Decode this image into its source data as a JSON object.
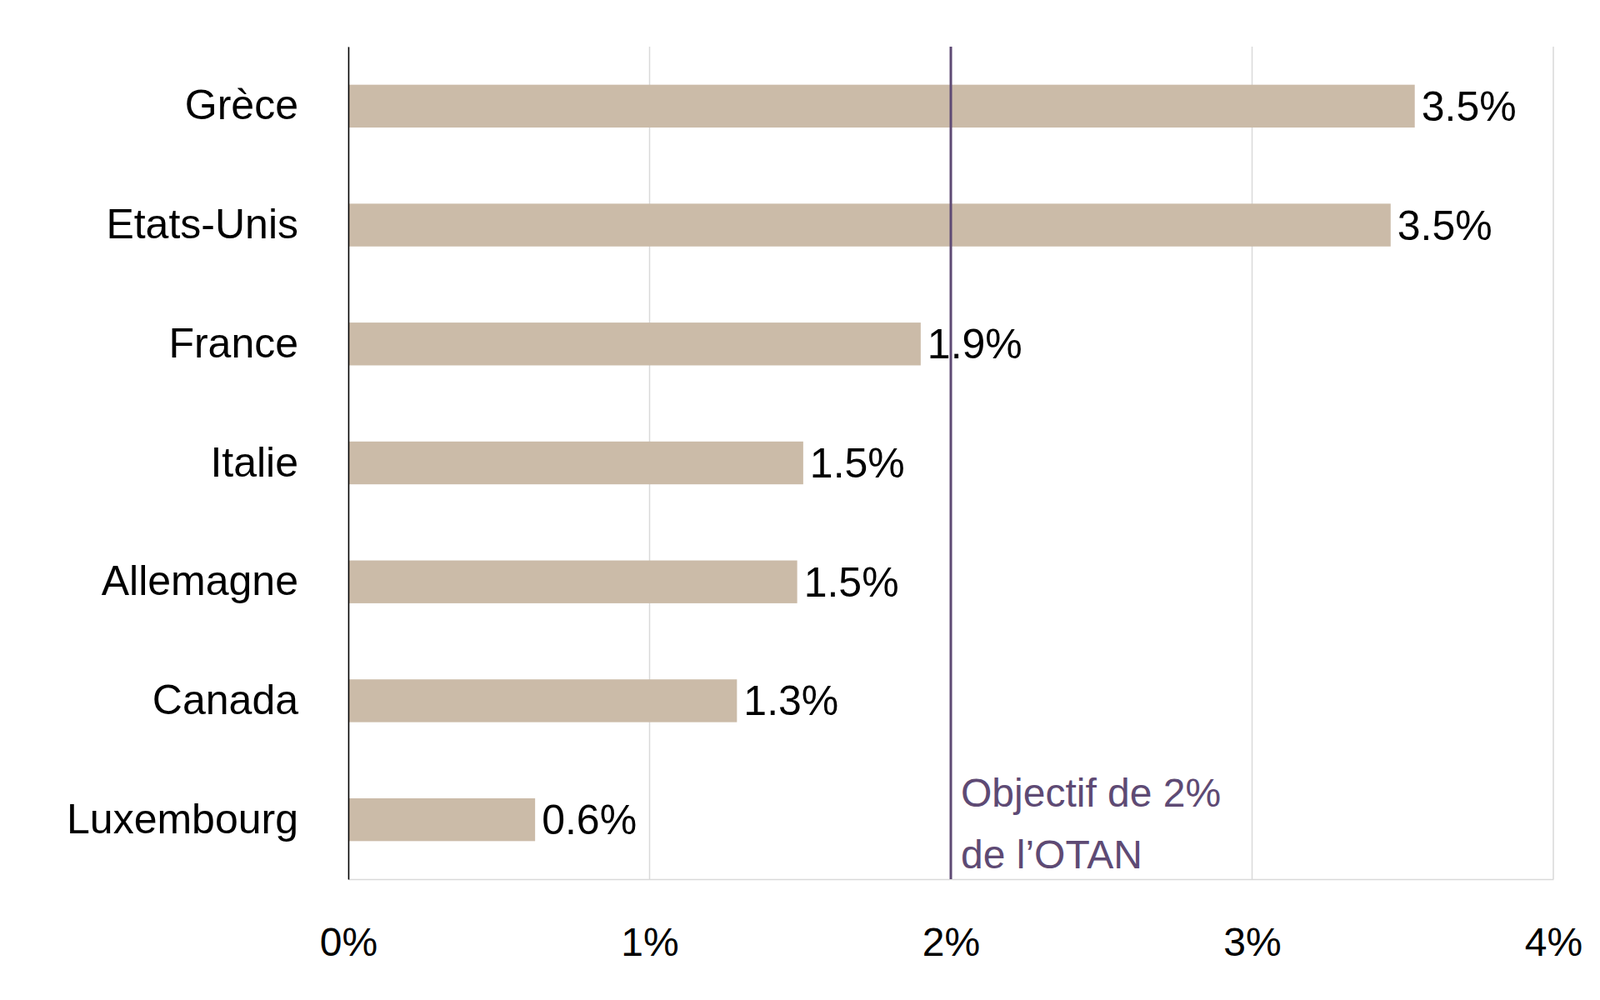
{
  "chart_data": {
    "type": "bar",
    "orientation": "horizontal",
    "categories": [
      "Grèce",
      "Etats-Unis",
      "France",
      "Italie",
      "Allemagne",
      "Canada",
      "Luxembourg"
    ],
    "values": [
      3.54,
      3.46,
      1.9,
      1.51,
      1.49,
      1.29,
      0.62
    ],
    "value_labels": [
      "3.5%",
      "3.5%",
      "1.9%",
      "1.5%",
      "1.5%",
      "1.3%",
      "0.6%"
    ],
    "data_labels": true,
    "color": "#cbbba8",
    "xlim": [
      0,
      4
    ],
    "xticks": [
      {
        "value": 0,
        "label": "0%"
      },
      {
        "value": 1,
        "label": "1%"
      },
      {
        "value": 2,
        "label": "2%"
      },
      {
        "value": 3,
        "label": "3%"
      },
      {
        "value": 4,
        "label": "4%"
      }
    ],
    "grid": true,
    "reference_line": {
      "value": 2,
      "label_lines": [
        "Objectif de 2%",
        "de l’OTAN"
      ],
      "color": "#5e4a74"
    }
  }
}
